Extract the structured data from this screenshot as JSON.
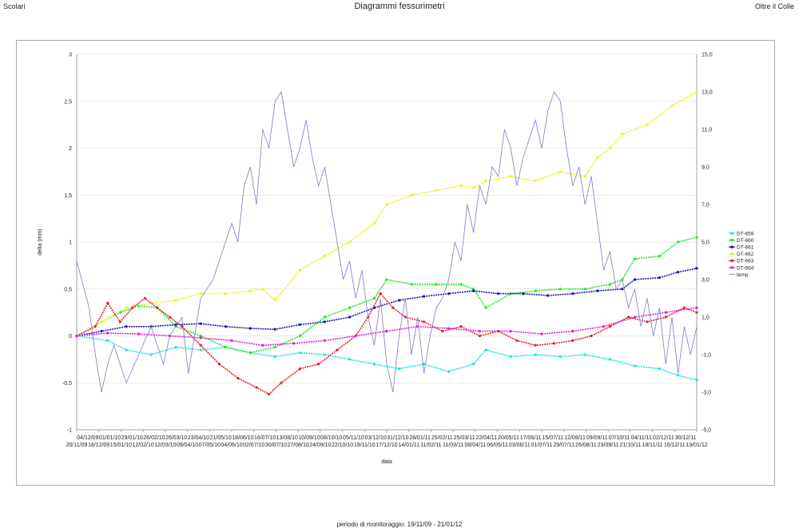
{
  "header": {
    "left": "Scolari",
    "title": "Diagrammi fessurimetri",
    "right": "Oltre il Colle"
  },
  "footer": "periodo di monitoraggio: 19/11/09 - 21/01/12",
  "chart_data": {
    "type": "line",
    "xlabel": "data",
    "ylabel": "delta (mm)",
    "ylim": [
      -1,
      3
    ],
    "y_ticks": [
      "-1",
      "-0,5",
      "0",
      "0,5",
      "1",
      "1,5",
      "2",
      "2,5",
      "3"
    ],
    "y2lim": [
      -5,
      15
    ],
    "y2_ticks": [
      "-5,0",
      "-3,0",
      "-1,0",
      "1,0",
      "3,0",
      "5,0",
      "7,0",
      "9,0",
      "11,0",
      "13,0",
      "15,0"
    ],
    "x_ticks_top": [
      "04/12/09",
      "01/01/10",
      "29/01/10",
      "26/02/10",
      "26/03/10",
      "23/04/10",
      "21/05/10",
      "18/06/10",
      "16/07/10",
      "13/08/10",
      "10/09/10",
      "08/10/10",
      "05/11/10",
      "03/12/10",
      "31/12/10",
      "28/01/11",
      "25/02/11",
      "25/03/11",
      "22/04/11",
      "20/05/11",
      "17/06/11",
      "15/07/11",
      "12/08/11",
      "09/09/11",
      "07/10/11",
      "04/11/11",
      "02/12/11",
      "30/12/11"
    ],
    "x_ticks_bottom": [
      "20/11/09",
      "18/12/09",
      "15/01/10",
      "12/02/10",
      "12/03/10",
      "09/04/10",
      "07/05/10",
      "04/06/10",
      "02/07/10",
      "30/07/10",
      "27/08/10",
      "24/09/10",
      "22/10/10",
      "19/11/10",
      "17/12/10",
      "14/01/11",
      "11/02/11",
      "11/03/11",
      "08/04/11",
      "06/05/11",
      "03/06/11",
      "01/07/11",
      "29/07/11",
      "26/08/11",
      "23/09/11",
      "21/10/11",
      "18/11/11",
      "16/12/11",
      "13/01/12"
    ],
    "legend_position": "right",
    "series": [
      {
        "name": "DT-659",
        "color": "#1ee0e8",
        "axis": "left",
        "marker": true,
        "points": [
          [
            0,
            0
          ],
          [
            0.05,
            -0.05
          ],
          [
            0.08,
            -0.15
          ],
          [
            0.12,
            -0.2
          ],
          [
            0.16,
            -0.12
          ],
          [
            0.2,
            -0.15
          ],
          [
            0.24,
            -0.12
          ],
          [
            0.28,
            -0.18
          ],
          [
            0.32,
            -0.22
          ],
          [
            0.36,
            -0.18
          ],
          [
            0.4,
            -0.2
          ],
          [
            0.44,
            -0.25
          ],
          [
            0.48,
            -0.3
          ],
          [
            0.52,
            -0.35
          ],
          [
            0.56,
            -0.3
          ],
          [
            0.6,
            -0.38
          ],
          [
            0.64,
            -0.3
          ],
          [
            0.66,
            -0.15
          ],
          [
            0.7,
            -0.22
          ],
          [
            0.74,
            -0.2
          ],
          [
            0.78,
            -0.22
          ],
          [
            0.82,
            -0.2
          ],
          [
            0.86,
            -0.25
          ],
          [
            0.9,
            -0.32
          ],
          [
            0.94,
            -0.35
          ],
          [
            0.97,
            -0.42
          ],
          [
            1,
            -0.47
          ]
        ]
      },
      {
        "name": "DT-660",
        "color": "#22e822",
        "axis": "left",
        "marker": true,
        "points": [
          [
            0,
            0
          ],
          [
            0.04,
            0.15
          ],
          [
            0.07,
            0.25
          ],
          [
            0.1,
            0.32
          ],
          [
            0.13,
            0.3
          ],
          [
            0.16,
            0.1
          ],
          [
            0.2,
            0.0
          ],
          [
            0.24,
            -0.12
          ],
          [
            0.28,
            -0.18
          ],
          [
            0.32,
            -0.12
          ],
          [
            0.36,
            0.0
          ],
          [
            0.4,
            0.2
          ],
          [
            0.44,
            0.3
          ],
          [
            0.48,
            0.4
          ],
          [
            0.5,
            0.6
          ],
          [
            0.54,
            0.55
          ],
          [
            0.58,
            0.55
          ],
          [
            0.62,
            0.55
          ],
          [
            0.64,
            0.5
          ],
          [
            0.66,
            0.3
          ],
          [
            0.7,
            0.45
          ],
          [
            0.74,
            0.48
          ],
          [
            0.78,
            0.5
          ],
          [
            0.82,
            0.5
          ],
          [
            0.86,
            0.55
          ],
          [
            0.88,
            0.6
          ],
          [
            0.9,
            0.82
          ],
          [
            0.94,
            0.85
          ],
          [
            0.97,
            1.0
          ],
          [
            1,
            1.05
          ]
        ]
      },
      {
        "name": "DT-661",
        "color": "#1414c8",
        "axis": "left",
        "marker": true,
        "points": [
          [
            0,
            0
          ],
          [
            0.04,
            0.05
          ],
          [
            0.08,
            0.1
          ],
          [
            0.12,
            0.1
          ],
          [
            0.16,
            0.12
          ],
          [
            0.2,
            0.13
          ],
          [
            0.24,
            0.1
          ],
          [
            0.28,
            0.08
          ],
          [
            0.32,
            0.07
          ],
          [
            0.36,
            0.12
          ],
          [
            0.4,
            0.15
          ],
          [
            0.44,
            0.2
          ],
          [
            0.48,
            0.3
          ],
          [
            0.52,
            0.38
          ],
          [
            0.56,
            0.42
          ],
          [
            0.6,
            0.45
          ],
          [
            0.64,
            0.48
          ],
          [
            0.68,
            0.45
          ],
          [
            0.72,
            0.45
          ],
          [
            0.76,
            0.43
          ],
          [
            0.8,
            0.45
          ],
          [
            0.84,
            0.48
          ],
          [
            0.88,
            0.5
          ],
          [
            0.9,
            0.6
          ],
          [
            0.94,
            0.62
          ],
          [
            0.97,
            0.68
          ],
          [
            1,
            0.72
          ]
        ]
      },
      {
        "name": "DT-662",
        "color": "#f0f020",
        "axis": "left",
        "marker": true,
        "points": [
          [
            0,
            0
          ],
          [
            0.04,
            0.15
          ],
          [
            0.08,
            0.3
          ],
          [
            0.12,
            0.35
          ],
          [
            0.16,
            0.38
          ],
          [
            0.2,
            0.45
          ],
          [
            0.24,
            0.45
          ],
          [
            0.28,
            0.48
          ],
          [
            0.3,
            0.5
          ],
          [
            0.32,
            0.38
          ],
          [
            0.36,
            0.7
          ],
          [
            0.4,
            0.85
          ],
          [
            0.44,
            1.0
          ],
          [
            0.48,
            1.2
          ],
          [
            0.5,
            1.4
          ],
          [
            0.54,
            1.5
          ],
          [
            0.58,
            1.55
          ],
          [
            0.62,
            1.6
          ],
          [
            0.64,
            1.58
          ],
          [
            0.66,
            1.65
          ],
          [
            0.7,
            1.7
          ],
          [
            0.74,
            1.65
          ],
          [
            0.78,
            1.75
          ],
          [
            0.82,
            1.7
          ],
          [
            0.84,
            1.9
          ],
          [
            0.86,
            2.0
          ],
          [
            0.88,
            2.15
          ],
          [
            0.92,
            2.25
          ],
          [
            0.96,
            2.45
          ],
          [
            1,
            2.6
          ]
        ]
      },
      {
        "name": "DT-663",
        "color": "#e82020",
        "axis": "left",
        "marker": true,
        "points": [
          [
            0,
            0
          ],
          [
            0.03,
            0.1
          ],
          [
            0.05,
            0.35
          ],
          [
            0.07,
            0.15
          ],
          [
            0.09,
            0.3
          ],
          [
            0.11,
            0.4
          ],
          [
            0.13,
            0.3
          ],
          [
            0.15,
            0.2
          ],
          [
            0.17,
            0.1
          ],
          [
            0.2,
            -0.1
          ],
          [
            0.23,
            -0.3
          ],
          [
            0.26,
            -0.45
          ],
          [
            0.29,
            -0.55
          ],
          [
            0.31,
            -0.62
          ],
          [
            0.33,
            -0.5
          ],
          [
            0.36,
            -0.35
          ],
          [
            0.39,
            -0.3
          ],
          [
            0.42,
            -0.15
          ],
          [
            0.45,
            0.0
          ],
          [
            0.47,
            0.2
          ],
          [
            0.49,
            0.45
          ],
          [
            0.51,
            0.3
          ],
          [
            0.53,
            0.2
          ],
          [
            0.56,
            0.15
          ],
          [
            0.59,
            0.05
          ],
          [
            0.62,
            0.1
          ],
          [
            0.65,
            0.0
          ],
          [
            0.68,
            0.05
          ],
          [
            0.71,
            -0.05
          ],
          [
            0.74,
            -0.1
          ],
          [
            0.77,
            -0.08
          ],
          [
            0.8,
            -0.05
          ],
          [
            0.83,
            0.0
          ],
          [
            0.86,
            0.1
          ],
          [
            0.89,
            0.2
          ],
          [
            0.92,
            0.15
          ],
          [
            0.95,
            0.2
          ],
          [
            0.98,
            0.3
          ],
          [
            1,
            0.25
          ]
        ]
      },
      {
        "name": "DT-664",
        "color": "#e020e0",
        "axis": "left",
        "marker": true,
        "points": [
          [
            0,
            0
          ],
          [
            0.05,
            0.03
          ],
          [
            0.1,
            0.02
          ],
          [
            0.15,
            0.0
          ],
          [
            0.2,
            -0.02
          ],
          [
            0.25,
            -0.05
          ],
          [
            0.3,
            -0.1
          ],
          [
            0.35,
            -0.08
          ],
          [
            0.4,
            -0.05
          ],
          [
            0.45,
            0.0
          ],
          [
            0.5,
            0.05
          ],
          [
            0.55,
            0.1
          ],
          [
            0.6,
            0.08
          ],
          [
            0.65,
            0.05
          ],
          [
            0.7,
            0.05
          ],
          [
            0.75,
            0.02
          ],
          [
            0.8,
            0.05
          ],
          [
            0.85,
            0.1
          ],
          [
            0.9,
            0.2
          ],
          [
            0.95,
            0.25
          ],
          [
            1,
            0.3
          ]
        ]
      },
      {
        "name": "temp",
        "color": "#7b7bc8",
        "axis": "right",
        "marker": false,
        "points": [
          [
            0,
            4.0
          ],
          [
            0.02,
            1.5
          ],
          [
            0.03,
            -1.0
          ],
          [
            0.04,
            -3.0
          ],
          [
            0.05,
            -1.5
          ],
          [
            0.06,
            -0.5
          ],
          [
            0.08,
            -2.5
          ],
          [
            0.1,
            -1.0
          ],
          [
            0.12,
            0.5
          ],
          [
            0.14,
            -1.5
          ],
          [
            0.15,
            0.0
          ],
          [
            0.17,
            1.0
          ],
          [
            0.18,
            -2.0
          ],
          [
            0.2,
            2.0
          ],
          [
            0.22,
            3.0
          ],
          [
            0.23,
            4.0
          ],
          [
            0.25,
            6.0
          ],
          [
            0.26,
            5.0
          ],
          [
            0.27,
            8.0
          ],
          [
            0.28,
            9.0
          ],
          [
            0.29,
            7.0
          ],
          [
            0.3,
            11.0
          ],
          [
            0.31,
            10.0
          ],
          [
            0.32,
            12.5
          ],
          [
            0.33,
            13.0
          ],
          [
            0.34,
            11.0
          ],
          [
            0.35,
            9.0
          ],
          [
            0.36,
            10.0
          ],
          [
            0.37,
            11.5
          ],
          [
            0.38,
            9.5
          ],
          [
            0.39,
            8.0
          ],
          [
            0.4,
            9.0
          ],
          [
            0.41,
            7.0
          ],
          [
            0.42,
            5.0
          ],
          [
            0.43,
            3.0
          ],
          [
            0.44,
            4.0
          ],
          [
            0.45,
            2.0
          ],
          [
            0.46,
            3.5
          ],
          [
            0.47,
            1.0
          ],
          [
            0.48,
            -0.5
          ],
          [
            0.49,
            2.0
          ],
          [
            0.5,
            -1.5
          ],
          [
            0.51,
            -3.0
          ],
          [
            0.52,
            0.0
          ],
          [
            0.53,
            2.0
          ],
          [
            0.54,
            -1.0
          ],
          [
            0.55,
            1.0
          ],
          [
            0.56,
            -2.0
          ],
          [
            0.57,
            0.0
          ],
          [
            0.58,
            1.5
          ],
          [
            0.59,
            2.0
          ],
          [
            0.6,
            3.0
          ],
          [
            0.61,
            5.0
          ],
          [
            0.62,
            4.0
          ],
          [
            0.63,
            7.0
          ],
          [
            0.64,
            5.5
          ],
          [
            0.65,
            8.0
          ],
          [
            0.66,
            7.0
          ],
          [
            0.67,
            9.0
          ],
          [
            0.68,
            8.5
          ],
          [
            0.69,
            11.0
          ],
          [
            0.7,
            10.0
          ],
          [
            0.71,
            8.0
          ],
          [
            0.72,
            9.5
          ],
          [
            0.73,
            10.5
          ],
          [
            0.74,
            11.5
          ],
          [
            0.75,
            10.0
          ],
          [
            0.76,
            12.0
          ],
          [
            0.77,
            13.0
          ],
          [
            0.78,
            12.5
          ],
          [
            0.79,
            10.0
          ],
          [
            0.8,
            8.0
          ],
          [
            0.81,
            9.0
          ],
          [
            0.82,
            7.0
          ],
          [
            0.83,
            8.5
          ],
          [
            0.84,
            6.0
          ],
          [
            0.85,
            3.5
          ],
          [
            0.86,
            4.5
          ],
          [
            0.87,
            2.5
          ],
          [
            0.88,
            3.0
          ],
          [
            0.89,
            1.5
          ],
          [
            0.9,
            2.5
          ],
          [
            0.91,
            0.5
          ],
          [
            0.92,
            2.0
          ],
          [
            0.93,
            0.0
          ],
          [
            0.94,
            1.5
          ],
          [
            0.95,
            -1.5
          ],
          [
            0.96,
            1.0
          ],
          [
            0.97,
            -2.0
          ],
          [
            0.98,
            0.5
          ],
          [
            0.99,
            -1.0
          ],
          [
            1,
            0.5
          ]
        ]
      }
    ]
  }
}
